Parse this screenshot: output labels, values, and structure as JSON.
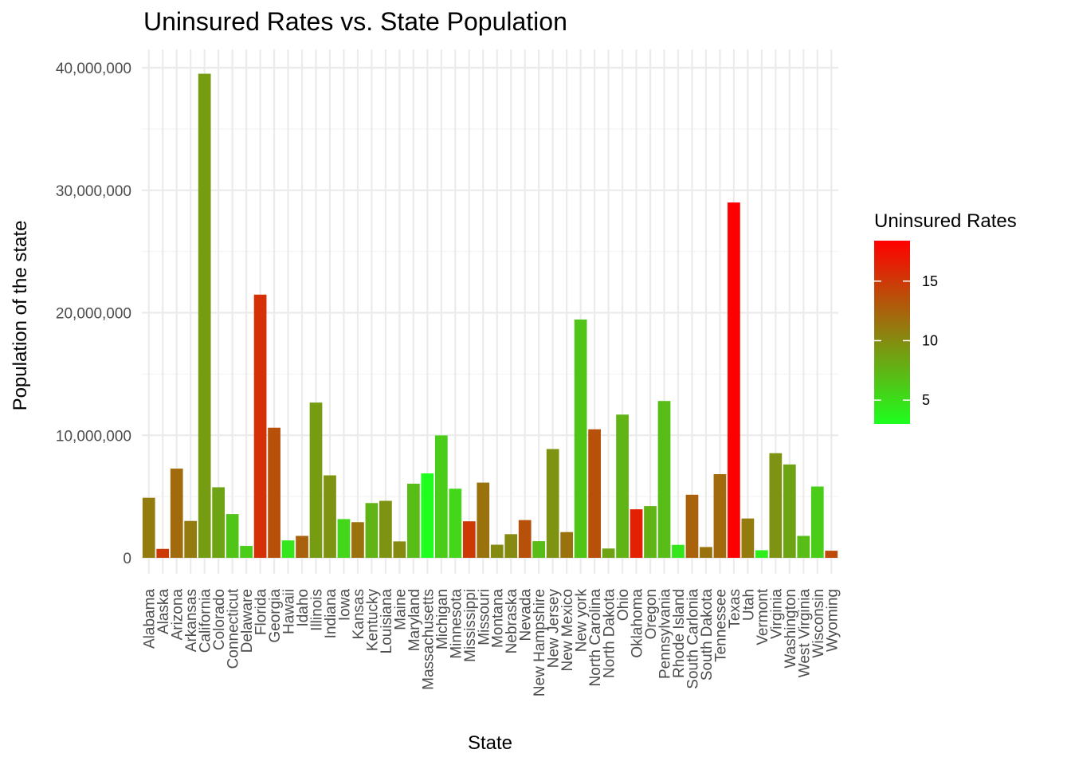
{
  "chart_data": {
    "type": "bar",
    "title": "Uninsured Rates vs. State Population",
    "xlabel": "State",
    "ylabel": "Population of the state",
    "ylim": [
      0,
      40000000
    ],
    "y_ticks": [
      "0",
      "10,000,000",
      "20,000,000",
      "30,000,000",
      "40,000,000"
    ],
    "grid": true,
    "legend": {
      "title": "Uninsured Rates",
      "position": "right",
      "ticks": [
        "5",
        "10",
        "15"
      ],
      "range": [
        3,
        18.4
      ],
      "low_color": "#1eff1e",
      "high_color": "#ff0000"
    },
    "categories": [
      "Alabama",
      "Alaska",
      "Arizona",
      "Arkansas",
      "California",
      "Colorado",
      "Connecticut",
      "Delaware",
      "Florida",
      "Georgia",
      "Hawaii",
      "Idaho",
      "Illinois",
      "Indiana",
      "Iowa",
      "Kansas",
      "Kentucky",
      "Louisiana",
      "Maine",
      "Maryland",
      "Massachusetts",
      "Michigan",
      "Minnesota",
      "Mississippi",
      "Missouri",
      "Montana",
      "Nebraska",
      "Nevada",
      "New Hampshire",
      "New Jersey",
      "New Mexico",
      "New york",
      "North Carolina",
      "North Dakota",
      "Ohio",
      "Oklahoma",
      "Oregon",
      "Pennsylvania",
      "Rhode Island",
      "South Carlonia",
      "South Dakota",
      "Tennessee",
      "Texas",
      "Utah",
      "Vermont",
      "Virginia",
      "Washington",
      "West Virginia",
      "Wisconsin",
      "Wyoming"
    ],
    "values": [
      4900000,
      730000,
      7280000,
      3010000,
      39510000,
      5760000,
      3570000,
      970000,
      21480000,
      10620000,
      1420000,
      1790000,
      12670000,
      6730000,
      3160000,
      2910000,
      4470000,
      4650000,
      1340000,
      6050000,
      6890000,
      9990000,
      5640000,
      2980000,
      6140000,
      1070000,
      1930000,
      3080000,
      1360000,
      8880000,
      2100000,
      19450000,
      10490000,
      760000,
      11690000,
      3960000,
      4220000,
      12800000,
      1060000,
      5150000,
      880000,
      6830000,
      29000000,
      3210000,
      620000,
      8540000,
      7620000,
      1790000,
      5820000,
      580000
    ],
    "uninsured_rates": [
      11.0,
      15.0,
      12.0,
      11.0,
      9.0,
      8.5,
      6.5,
      6.0,
      15.5,
      13.5,
      4.5,
      12.5,
      9.0,
      9.5,
      5.5,
      11.5,
      7.5,
      9.5,
      10.0,
      7.0,
      3.0,
      6.0,
      5.5,
      15.0,
      11.5,
      10.0,
      10.0,
      13.5,
      7.0,
      9.5,
      11.5,
      6.5,
      13.5,
      8.5,
      7.5,
      16.5,
      7.5,
      7.0,
      4.5,
      12.5,
      11.5,
      12.0,
      18.4,
      11.0,
      4.0,
      9.5,
      8.5,
      7.0,
      6.0,
      14.0
    ]
  }
}
